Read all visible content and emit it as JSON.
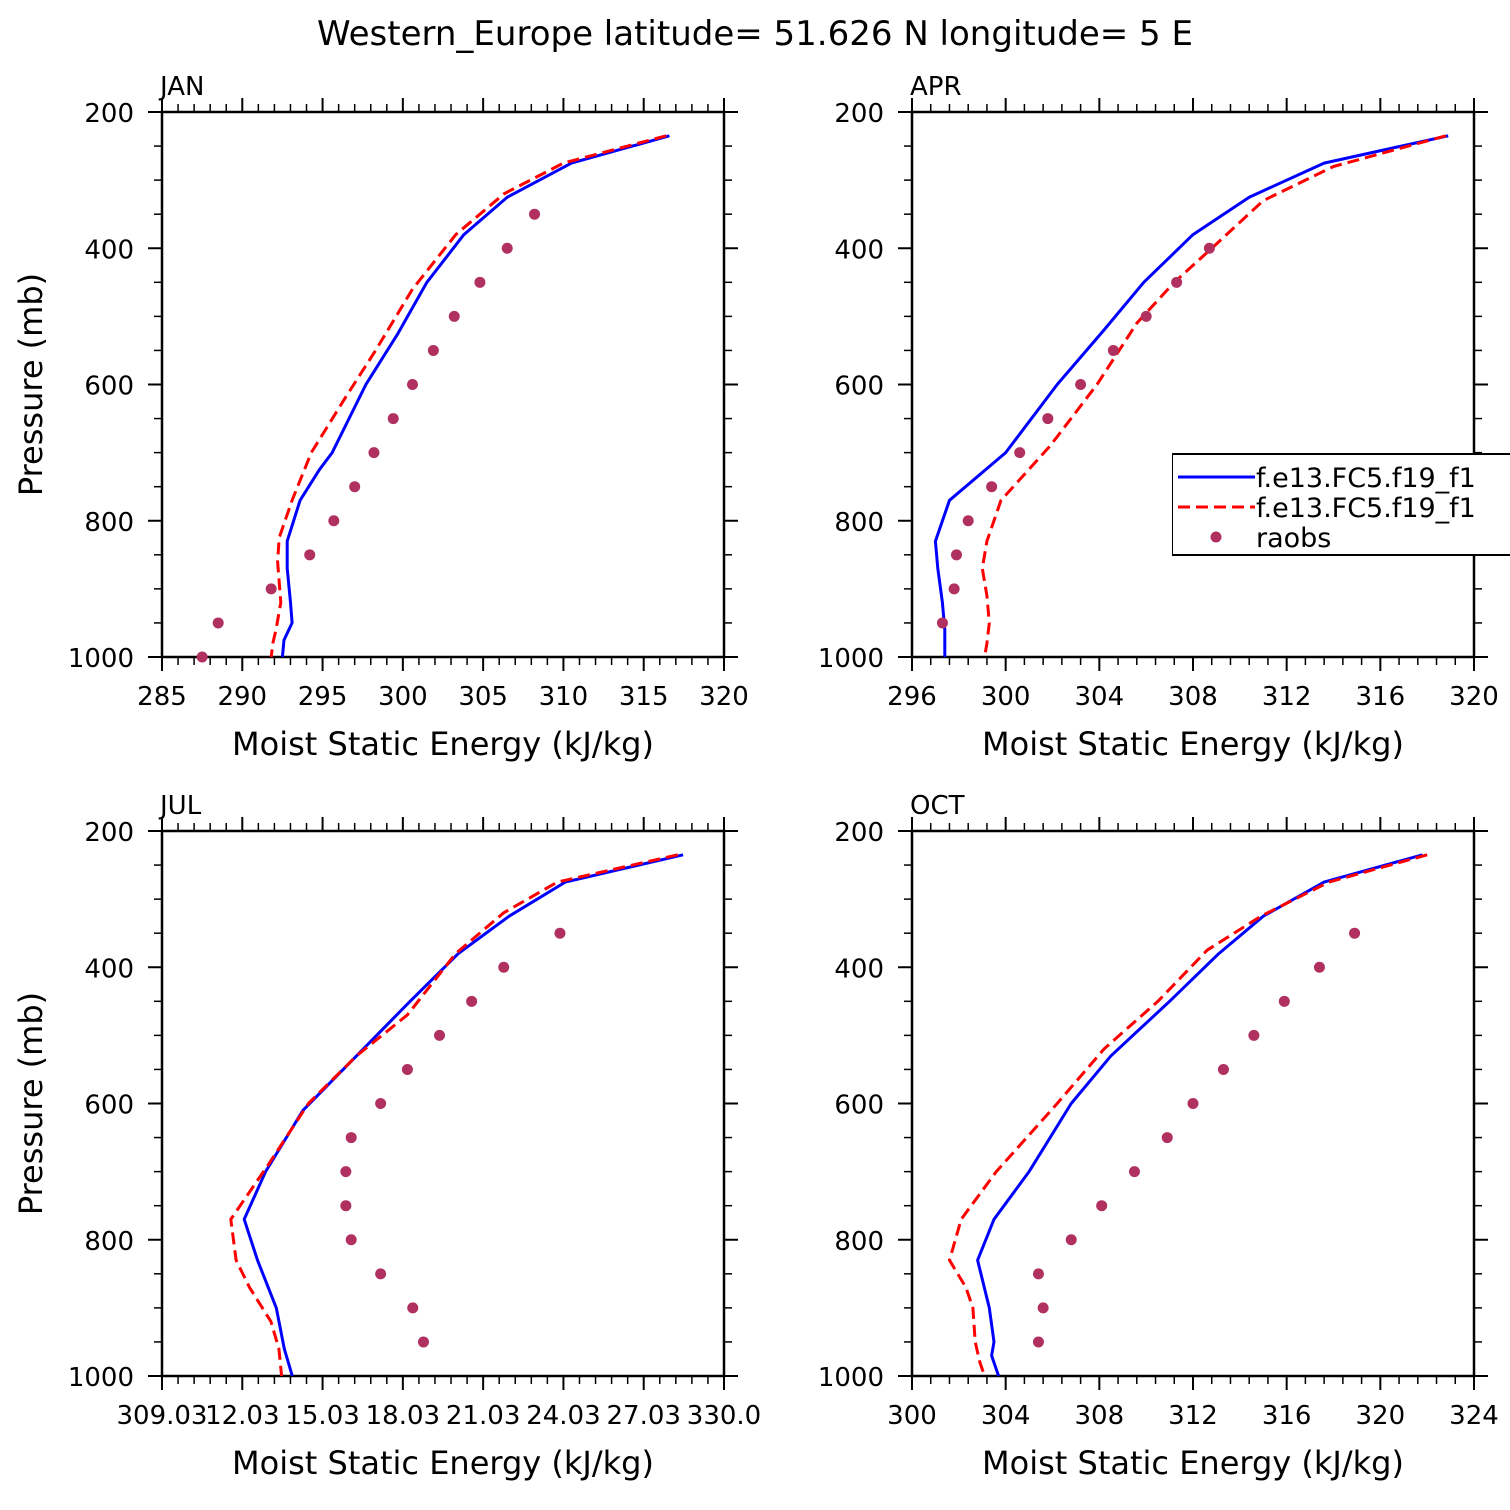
{
  "title": "Western_Europe  latitude= 51.626 N longitude= 5 E",
  "colors": {
    "model1": "#0000ff",
    "model2": "#ff0000",
    "obs": "#b03060"
  },
  "chart_data": [
    {
      "type": "line",
      "label": "JAN",
      "xlabel": "Moist Static Energy (kJ/kg)",
      "ylabel": "Pressure (mb)",
      "xlim": [
        285,
        320
      ],
      "ylim": [
        1000,
        200
      ],
      "xticks": [
        "285",
        "290",
        "295",
        "300",
        "305",
        "310",
        "315",
        "320"
      ],
      "yticks": [
        "200",
        "400",
        "600",
        "800",
        "1000"
      ],
      "series": [
        {
          "name": "f.e13.FC5.f19_f1",
          "style": "solid",
          "color": "#0000ff",
          "x": [
            316.6,
            310.5,
            306.5,
            303.8,
            301.5,
            299.7,
            297.7,
            295.6,
            294.8,
            293.6,
            292.8,
            292.8,
            293.0,
            293.1,
            292.6,
            292.5
          ],
          "y": [
            235,
            275,
            325,
            380,
            450,
            525,
            600,
            700,
            725,
            770,
            830,
            870,
            920,
            950,
            975,
            1000
          ]
        },
        {
          "name": "f.e13.FC5.f19_f1",
          "style": "dashed",
          "color": "#ff0000",
          "x": [
            316.4,
            310.0,
            306.3,
            303.3,
            300.6,
            298.3,
            296.4,
            294.3,
            293.1,
            292.3,
            292.2,
            292.4,
            292.1,
            291.9,
            291.8
          ],
          "y": [
            235,
            275,
            320,
            380,
            460,
            550,
            620,
            700,
            770,
            825,
            860,
            920,
            960,
            980,
            1000
          ]
        },
        {
          "name": "raobs",
          "style": "markers",
          "color": "#b03060",
          "x": [
            287.5,
            288.5,
            291.8,
            294.2,
            295.7,
            297.0,
            298.2,
            299.4,
            300.6,
            301.9,
            303.2,
            304.8,
            306.5,
            308.2
          ],
          "y": [
            1000,
            950,
            900,
            850,
            800,
            750,
            700,
            650,
            600,
            550,
            500,
            450,
            400,
            350
          ]
        }
      ]
    },
    {
      "type": "line",
      "label": "APR",
      "xlabel": "Moist Static Energy (kJ/kg)",
      "ylabel": "",
      "xlim": [
        296,
        320
      ],
      "ylim": [
        1000,
        200
      ],
      "xticks": [
        "296",
        "300",
        "304",
        "308",
        "312",
        "316",
        "320"
      ],
      "yticks": [
        "200",
        "400",
        "600",
        "800",
        "1000"
      ],
      "legend": [
        "f.e13.FC5.f19_f1",
        "f.e13.FC5.f19_f1",
        "raobs"
      ],
      "series": [
        {
          "name": "f.e13.FC5.f19_f1",
          "style": "solid",
          "color": "#0000ff",
          "x": [
            318.9,
            313.6,
            310.4,
            308.0,
            305.9,
            304.2,
            302.2,
            300.0,
            297.6,
            297.0,
            297.1,
            297.3,
            297.4,
            297.4
          ],
          "y": [
            235,
            275,
            325,
            380,
            450,
            520,
            600,
            700,
            770,
            830,
            870,
            920,
            960,
            1000
          ]
        },
        {
          "name": "f.e13.FC5.f19_f1",
          "style": "dashed",
          "color": "#ff0000",
          "x": [
            318.8,
            314.0,
            311.0,
            308.8,
            307.2,
            305.6,
            303.9,
            301.9,
            299.8,
            299.2,
            299.0,
            299.2,
            299.3,
            299.2,
            299.1
          ],
          "y": [
            235,
            280,
            330,
            400,
            450,
            510,
            600,
            690,
            770,
            830,
            870,
            910,
            950,
            980,
            1000
          ]
        },
        {
          "name": "raobs",
          "style": "markers",
          "color": "#b03060",
          "x": [
            297.3,
            297.8,
            297.9,
            298.4,
            299.4,
            300.6,
            301.8,
            303.2,
            304.6,
            306.0,
            307.3,
            308.7
          ],
          "y": [
            950,
            900,
            850,
            800,
            750,
            700,
            650,
            600,
            550,
            500,
            450,
            400
          ]
        }
      ]
    },
    {
      "type": "line",
      "label": "JUL",
      "xlabel": "Moist Static Energy (kJ/kg)",
      "ylabel": "Pressure (mb)",
      "xlim": [
        309.03,
        330.03
      ],
      "ylim": [
        1000,
        200
      ],
      "xticks": [
        "309.03",
        "12.03",
        "15.03",
        "18.03",
        "21.03",
        "24.03",
        "27.03",
        "330.0"
      ],
      "yticks": [
        "200",
        "400",
        "600",
        "800",
        "1000"
      ],
      "series": [
        {
          "name": "f.e13.FC5.f19_f1",
          "style": "solid",
          "color": "#0000ff",
          "x": [
            328.5,
            324.1,
            322.0,
            320.1,
            318.3,
            316.3,
            314.3,
            312.9,
            312.1,
            312.6,
            313.3,
            313.6,
            313.9
          ],
          "y": [
            235,
            275,
            325,
            380,
            450,
            530,
            610,
            700,
            770,
            830,
            900,
            960,
            1000
          ]
        },
        {
          "name": "f.e13.FC5.f19_f1",
          "style": "dashed",
          "color": "#ff0000",
          "x": [
            328.3,
            323.8,
            321.8,
            320.0,
            318.2,
            316.3,
            314.5,
            313.0,
            311.6,
            311.8,
            312.3,
            313.1,
            313.4,
            313.5
          ],
          "y": [
            235,
            275,
            320,
            380,
            470,
            530,
            600,
            690,
            770,
            830,
            870,
            920,
            960,
            1000
          ]
        },
        {
          "name": "raobs",
          "style": "markers",
          "color": "#b03060",
          "x": [
            318.8,
            318.4,
            317.2,
            316.1,
            315.9,
            315.9,
            316.1,
            317.2,
            318.2,
            319.4,
            320.6,
            321.8,
            323.9
          ],
          "y": [
            950,
            900,
            850,
            800,
            750,
            700,
            650,
            600,
            550,
            500,
            450,
            400,
            350
          ]
        }
      ]
    },
    {
      "type": "line",
      "label": "OCT",
      "xlabel": "Moist Static Energy (kJ/kg)",
      "ylabel": "",
      "xlim": [
        300,
        324
      ],
      "ylim": [
        1000,
        200
      ],
      "xticks": [
        "300",
        "304",
        "308",
        "312",
        "316",
        "320",
        "324"
      ],
      "yticks": [
        "200",
        "400",
        "600",
        "800",
        "1000"
      ],
      "series": [
        {
          "name": "f.e13.FC5.f19_f1",
          "style": "solid",
          "color": "#0000ff",
          "x": [
            321.8,
            317.6,
            315.0,
            313.1,
            311.0,
            308.5,
            306.8,
            305.0,
            303.5,
            302.8,
            303.3,
            303.5,
            303.4,
            303.7
          ],
          "y": [
            235,
            275,
            325,
            380,
            450,
            530,
            600,
            700,
            770,
            830,
            900,
            950,
            970,
            1000
          ]
        },
        {
          "name": "f.e13.FC5.f19_f1",
          "style": "dashed",
          "color": "#ff0000",
          "x": [
            322.0,
            317.8,
            314.9,
            312.6,
            310.5,
            308.2,
            306.2,
            303.6,
            302.1,
            301.6,
            302.3,
            302.6,
            302.7,
            302.9,
            303.1
          ],
          "y": [
            235,
            275,
            325,
            375,
            450,
            520,
            600,
            700,
            770,
            830,
            870,
            900,
            950,
            980,
            1000
          ]
        },
        {
          "name": "raobs",
          "style": "markers",
          "color": "#b03060",
          "x": [
            305.4,
            305.6,
            305.4,
            306.8,
            308.1,
            309.5,
            310.9,
            312.0,
            313.3,
            314.6,
            315.9,
            317.4,
            318.9
          ],
          "y": [
            950,
            900,
            850,
            800,
            750,
            700,
            650,
            600,
            550,
            500,
            450,
            400,
            350
          ]
        }
      ]
    }
  ]
}
